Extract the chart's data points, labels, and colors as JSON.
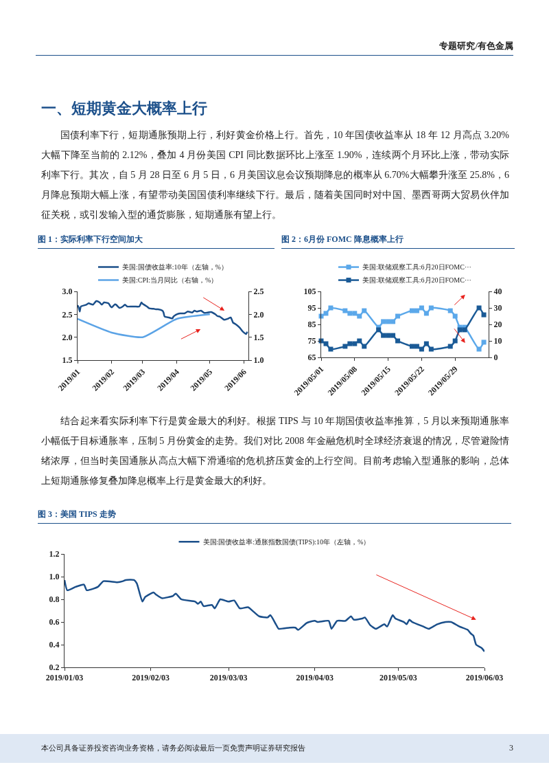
{
  "chart_data": [
    {
      "type": "line",
      "title": "图 1：实际利率下行空间加大",
      "annotations": [
        "专题研究/有色金属",
        "一、短期黄金大概率上行",
        "国债利率下行，短期通胀预期上行，利好黄金价格上行。首先，10 年国债收益率从 18 年 12 月高点 3.20%大幅下降至当前的 2.12%，叠加 4 月份美国 CPI 同比数据环比上涨至 1.90%，连续两个月环比上涨，带动实际利率下行。其次，自 5 月 28 日至 6 月 5 日，6 月美国议息会议预期降息的概率从 6.70%大幅攀升涨至 25.8%，6 月降息预期大幅上涨，有望带动美国国债利率继续下行。最后，随着美国同时对中国、墨西哥两大贸易伙伴加征关税，或引发输入型的通货膨胀，短期通胀有望上行。"
      ],
      "xlim": [
        "2019-01-01",
        "2019-06-05"
      ],
      "xticks": [
        {
          "value": "2019-01-01",
          "label": "2019/01"
        },
        {
          "value": "2019-02-01",
          "label": "2019/02"
        },
        {
          "value": "2019-03-01",
          "label": "2019/03"
        },
        {
          "value": "2019-04-01",
          "label": "2019/04"
        },
        {
          "value": "2019-05-01",
          "label": "2019/05"
        },
        {
          "value": "2019-06-01",
          "label": "2019/06"
        }
      ],
      "ylim": [
        1.5,
        3.0
      ],
      "yticks": [
        {
          "value": 1.5,
          "label": "1.5"
        },
        {
          "value": 2.0,
          "label": "2.0"
        },
        {
          "value": 2.5,
          "label": "2.5"
        },
        {
          "value": 3.0,
          "label": "3.0"
        }
      ],
      "y2lim": [
        1.0,
        2.5
      ],
      "y2ticks": [
        {
          "value": 1.0,
          "label": "1.0"
        },
        {
          "value": 1.5,
          "label": "1.5"
        },
        {
          "value": 2.0,
          "label": "2.0"
        },
        {
          "value": 2.5,
          "label": "2.5"
        }
      ],
      "grid": false,
      "legend": "top",
      "marker": "none",
      "series": [
        {
          "name": "美国:国债收益率:10年（左轴，%）",
          "color": "#1b4f8a",
          "x": [
            "2019-01-01",
            "2019-01-02",
            "2019-01-03",
            "2019-01-04",
            "2019-01-09",
            "2019-01-11",
            "2019-01-15",
            "2019-01-18",
            "2019-01-21",
            "2019-01-23",
            "2019-01-25",
            "2019-01-29",
            "2019-01-31",
            "2019-02-01",
            "2019-02-04",
            "2019-02-05",
            "2019-02-08",
            "2019-02-11",
            "2019-02-13",
            "2019-02-15",
            "2019-02-19",
            "2019-02-22",
            "2019-02-26",
            "2019-02-28",
            "2019-03-01",
            "2019-03-05",
            "2019-03-07",
            "2019-03-11",
            "2019-03-13",
            "2019-03-15",
            "2019-03-19",
            "2019-03-20",
            "2019-03-21",
            "2019-03-25",
            "2019-03-28",
            "2019-03-29",
            "2019-04-01",
            "2019-04-04",
            "2019-04-08",
            "2019-04-11",
            "2019-04-15",
            "2019-04-17",
            "2019-04-19",
            "2019-04-23",
            "2019-04-26",
            "2019-04-29",
            "2019-05-02",
            "2019-05-06",
            "2019-05-08",
            "2019-05-10",
            "2019-05-14",
            "2019-05-17",
            "2019-05-20",
            "2019-05-22",
            "2019-05-24",
            "2019-05-28",
            "2019-05-31",
            "2019-06-03",
            "2019-06-04"
          ],
          "values": [
            2.7,
            2.65,
            2.56,
            2.67,
            2.71,
            2.74,
            2.71,
            2.79,
            2.76,
            2.71,
            2.76,
            2.74,
            2.67,
            2.65,
            2.72,
            2.71,
            2.64,
            2.67,
            2.71,
            2.67,
            2.67,
            2.67,
            2.67,
            2.76,
            2.73,
            2.67,
            2.63,
            2.62,
            2.61,
            2.61,
            2.58,
            2.54,
            2.45,
            2.43,
            2.41,
            2.45,
            2.5,
            2.52,
            2.52,
            2.56,
            2.54,
            2.58,
            2.56,
            2.58,
            2.53,
            2.54,
            2.55,
            2.5,
            2.46,
            2.45,
            2.38,
            2.4,
            2.43,
            2.32,
            2.29,
            2.21,
            2.12,
            2.07,
            2.12
          ]
        },
        {
          "name": "美国:CPI:当月同比（右轴，%）",
          "color": "#5ba3e6",
          "axis": "y2",
          "x": [
            "2019-01-01",
            "2019-02-01",
            "2019-03-01",
            "2019-04-01",
            "2019-05-01"
          ],
          "values": [
            1.9,
            1.6,
            1.5,
            1.9,
            2.0
          ]
        }
      ]
    },
    {
      "type": "line",
      "title": "图 2：6月份 FOMC 降息概率上行",
      "xlim": [
        "2019-05-01",
        "2019-06-05"
      ],
      "xticks": [
        {
          "value": "2019-05-01",
          "label": "2019/05/01"
        },
        {
          "value": "2019-05-08",
          "label": "2019/05/08"
        },
        {
          "value": "2019-05-15",
          "label": "2019/05/15"
        },
        {
          "value": "2019-05-22",
          "label": "2019/05/22"
        },
        {
          "value": "2019-05-29",
          "label": "2019/05/29"
        }
      ],
      "ylim": [
        65,
        105
      ],
      "yticks": [
        65,
        75,
        85,
        95,
        105
      ],
      "y2lim": [
        0,
        40
      ],
      "y2ticks": [
        0,
        10,
        20,
        30,
        40
      ],
      "grid": false,
      "legend": "top",
      "marker": "square",
      "x": [
        "2019-05-01",
        "2019-05-02",
        "2019-05-03",
        "2019-05-06",
        "2019-05-07",
        "2019-05-08",
        "2019-05-09",
        "2019-05-10",
        "2019-05-13",
        "2019-05-14",
        "2019-05-15",
        "2019-05-16",
        "2019-05-17",
        "2019-05-20",
        "2019-05-21",
        "2019-05-22",
        "2019-05-23",
        "2019-05-24",
        "2019-05-28",
        "2019-05-29",
        "2019-05-30",
        "2019-05-31",
        "2019-06-03",
        "2019-06-04"
      ],
      "series": [
        {
          "name": "美国:联储观察工具:6月20日FOMC···",
          "color": "#5ba8ea",
          "values": [
            90,
            91.7,
            95,
            93.3,
            91.7,
            91.7,
            90,
            93.3,
            83.3,
            86.7,
            86.7,
            86.7,
            90,
            93.3,
            93.3,
            95,
            91.7,
            95,
            93.3,
            90,
            83.3,
            83.3,
            70,
            74.2
          ]
        },
        {
          "name": "美国:联储观察工具:6月20日FOMC···",
          "color": "#1a5a96",
          "axis": "y2",
          "values": [
            10,
            8.3,
            5,
            6.7,
            8.3,
            8.3,
            10,
            6.7,
            16.7,
            13.3,
            13.3,
            13.3,
            10,
            6.7,
            6.7,
            5,
            8.3,
            5,
            6.7,
            10,
            16.7,
            16.7,
            30,
            25.8
          ]
        }
      ]
    },
    {
      "type": "line",
      "title": "图 3：美国 TIPS 走势",
      "annotations": [
        "结合起来看实际利率下行是黄金最大的利好。根据 TIPS 与 10 年期国债收益率推算，5 月以来预期通胀率小幅低于目标通胀率，压制 5 月份黄金的走势。我们对比 2008 年金融危机时全球经济衰退的情况，尽管避险情绪浓厚，但当时美国通胀从高点大幅下滑通缩的危机挤压黄金的上行空间。目前考虑输入型通胀的影响，总体上短期通胀修复叠加降息概率上行是黄金最大的利好。",
        "本公司具备证券投资咨询业务资格，请务必阅读最后一页免责声明证券研究报告",
        "3"
      ],
      "xlim": [
        "2019-01-03",
        "2019-06-03"
      ],
      "xticks": [
        {
          "value": "2019-01-03",
          "label": "2019/01/03"
        },
        {
          "value": "2019-02-03",
          "label": "2019/02/03"
        },
        {
          "value": "2019-03-03",
          "label": "2019/03/03"
        },
        {
          "value": "2019-04-03",
          "label": "2019/04/03"
        },
        {
          "value": "2019-05-03",
          "label": "2019/05/03"
        },
        {
          "value": "2019-06-03",
          "label": "2019/06/03"
        }
      ],
      "ylim": [
        0.2,
        1.2
      ],
      "yticks": [
        {
          "value": 0.2,
          "label": "0.2"
        },
        {
          "value": 0.4,
          "label": "0.4"
        },
        {
          "value": 0.6,
          "label": "0.6"
        },
        {
          "value": 0.8,
          "label": "0.8"
        },
        {
          "value": 1.0,
          "label": "1.0"
        },
        {
          "value": 1.2,
          "label": "1.2"
        }
      ],
      "grid": false,
      "legend": "top",
      "marker": "none",
      "series": [
        {
          "name": "美国:国债收益率:通胀指数国债(TIPS):10年（左轴，%）",
          "color": "#1b4f8a",
          "x": [
            "2019-01-03",
            "2019-01-04",
            "2019-01-07",
            "2019-01-10",
            "2019-01-11",
            "2019-01-15",
            "2019-01-17",
            "2019-01-22",
            "2019-01-24",
            "2019-01-25",
            "2019-01-28",
            "2019-01-29",
            "2019-01-31",
            "2019-02-01",
            "2019-02-04",
            "2019-02-05",
            "2019-02-07",
            "2019-02-11",
            "2019-02-12",
            "2019-02-14",
            "2019-02-19",
            "2019-02-20",
            "2019-02-21",
            "2019-02-22",
            "2019-02-25",
            "2019-02-26",
            "2019-02-27",
            "2019-02-28",
            "2019-03-03",
            "2019-03-05",
            "2019-03-07",
            "2019-03-10",
            "2019-03-12",
            "2019-03-14",
            "2019-03-17",
            "2019-03-18",
            "2019-03-20",
            "2019-03-21",
            "2019-03-25",
            "2019-03-27",
            "2019-03-28",
            "2019-03-31",
            "2019-04-01",
            "2019-04-03",
            "2019-04-04",
            "2019-04-08",
            "2019-04-09",
            "2019-04-11",
            "2019-04-14",
            "2019-04-16",
            "2019-04-17",
            "2019-04-20",
            "2019-04-21",
            "2019-04-23",
            "2019-04-25",
            "2019-04-28",
            "2019-04-29",
            "2019-05-01",
            "2019-05-02",
            "2019-05-05",
            "2019-05-06",
            "2019-05-07",
            "2019-05-08",
            "2019-05-12",
            "2019-05-14",
            "2019-05-17",
            "2019-05-20",
            "2019-05-22",
            "2019-05-25",
            "2019-05-28",
            "2019-05-29",
            "2019-05-30",
            "2019-05-31",
            "2019-06-02",
            "2019-06-03"
          ],
          "values": [
            0.97,
            0.88,
            0.91,
            0.93,
            0.88,
            0.91,
            0.96,
            0.95,
            0.96,
            0.97,
            0.97,
            0.94,
            0.78,
            0.82,
            0.86,
            0.84,
            0.81,
            0.83,
            0.85,
            0.8,
            0.78,
            0.76,
            0.78,
            0.74,
            0.75,
            0.72,
            0.76,
            0.8,
            0.78,
            0.79,
            0.72,
            0.73,
            0.69,
            0.65,
            0.64,
            0.66,
            0.58,
            0.54,
            0.55,
            0.55,
            0.53,
            0.59,
            0.6,
            0.61,
            0.6,
            0.61,
            0.54,
            0.61,
            0.61,
            0.65,
            0.62,
            0.63,
            0.64,
            0.57,
            0.54,
            0.58,
            0.56,
            0.66,
            0.63,
            0.6,
            0.58,
            0.62,
            0.6,
            0.56,
            0.54,
            0.58,
            0.6,
            0.6,
            0.56,
            0.53,
            0.5,
            0.48,
            0.4,
            0.37,
            0.34
          ]
        }
      ]
    }
  ]
}
